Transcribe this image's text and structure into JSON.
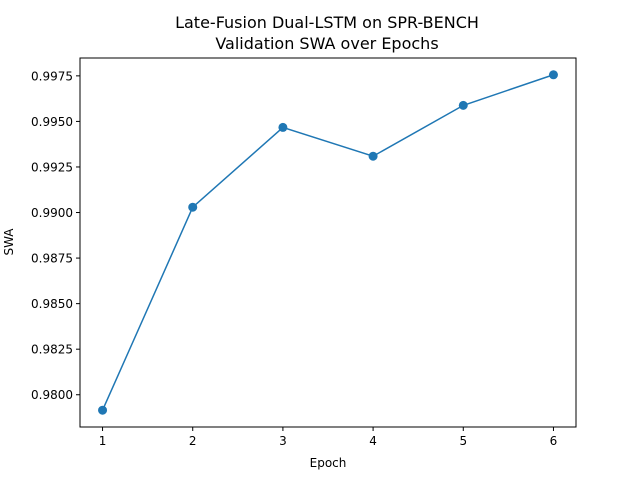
{
  "chart_data": {
    "type": "line",
    "title": "Late-Fusion Dual-LSTM on SPR-BENCH",
    "subtitle": "Validation SWA over Epochs",
    "xlabel": "Epoch",
    "ylabel": "SWA",
    "x": [
      1,
      2,
      3,
      4,
      5,
      6
    ],
    "series": [
      {
        "values": [
          0.97915,
          0.99029,
          0.99467,
          0.99309,
          0.99588,
          0.99756
        ]
      }
    ],
    "xticks": [
      "1",
      "2",
      "3",
      "4",
      "5",
      "6"
    ],
    "yticks": [
      "0.9800",
      "0.9825",
      "0.9850",
      "0.9875",
      "0.9900",
      "0.9925",
      "0.9950",
      "0.9975"
    ],
    "xlim": [
      0.75,
      6.25
    ],
    "ylim": [
      0.97823,
      0.99848
    ],
    "markers": true,
    "grid": false,
    "colors": {
      "line": "#1f77b4",
      "axis": "#000000"
    }
  }
}
